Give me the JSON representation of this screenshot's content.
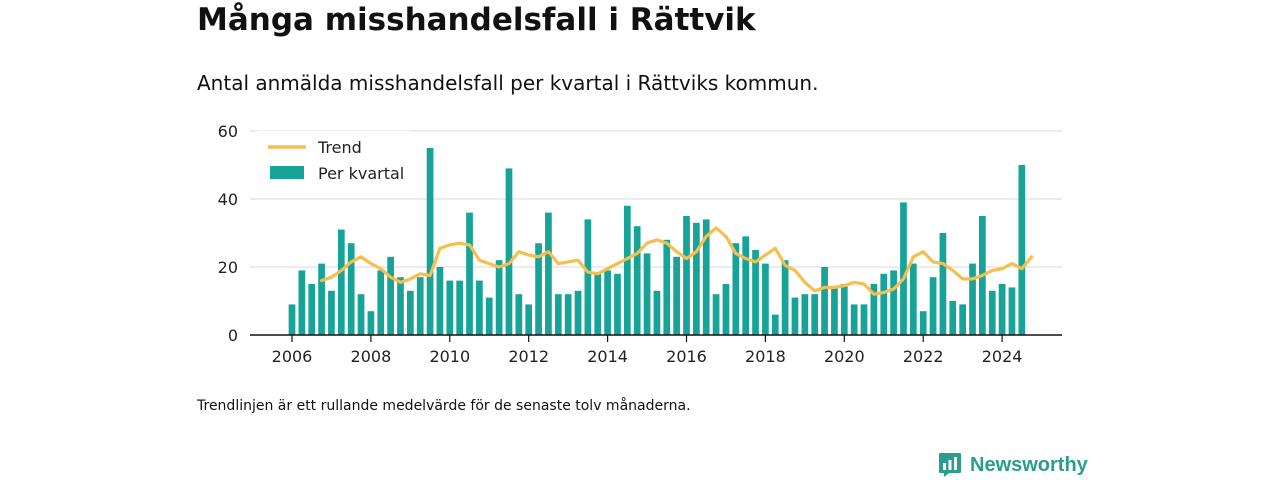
{
  "header": {
    "title": "Många misshandelsfall i Rättvik",
    "subtitle": "Antal anmälda misshandelsfall per kvartal i Rättviks kommun."
  },
  "footnote": "Trendlinjen är ett rullande medelvärde för de senaste tolv månaderna.",
  "brand": {
    "name": "Newsworthy",
    "logo_icon": "bar-chart-speech-bubble-icon",
    "color": "#2a9d8f"
  },
  "chart_data": {
    "type": "bar",
    "title": "",
    "xlabel": "",
    "ylabel": "",
    "ylim": [
      0,
      60
    ],
    "yticks": [
      "0",
      "20",
      "40",
      "60"
    ],
    "xticks": [
      "2006",
      "2008",
      "2010",
      "2012",
      "2014",
      "2016",
      "2018",
      "2020",
      "2022",
      "2024"
    ],
    "grid": true,
    "legend_position": "top-left",
    "colors": {
      "bar": "#17a398",
      "trend": "#f5bf4f"
    },
    "series": [
      {
        "name": "Per kvartal",
        "type": "bar",
        "x_start": "2006-01",
        "interval": "quarter",
        "values": [
          9,
          19,
          15,
          21,
          13,
          31,
          27,
          12,
          7,
          19,
          23,
          17,
          13,
          17,
          55,
          20,
          16,
          16,
          36,
          16,
          11,
          22,
          49,
          12,
          9,
          27,
          36,
          12,
          12,
          13,
          34,
          18,
          19,
          18,
          38,
          32,
          24,
          13,
          28,
          23,
          35,
          33,
          34,
          12,
          15,
          27,
          29,
          25,
          21,
          6,
          22,
          11,
          12,
          12,
          20,
          14,
          15,
          9,
          9,
          15,
          18,
          19,
          39,
          21,
          7,
          17,
          30,
          10,
          9,
          21,
          35,
          13,
          15,
          14,
          50
        ]
      },
      {
        "name": "Trend",
        "type": "line",
        "x_start": "2006-10",
        "interval": "quarter",
        "values": [
          16,
          17,
          19,
          21.5,
          23,
          21,
          19.5,
          17,
          15.5,
          16.5,
          18,
          17.5,
          25.5,
          26.5,
          27,
          26.5,
          22,
          21,
          20,
          21,
          24.5,
          23.5,
          23,
          24.5,
          21,
          21.5,
          22,
          18.5,
          18,
          19.5,
          21,
          22.5,
          24,
          27,
          28,
          27,
          24.5,
          22.5,
          24.5,
          29,
          31.5,
          29,
          24,
          22.5,
          21.5,
          23.5,
          25.5,
          20.5,
          19,
          15.5,
          13,
          14,
          14,
          14.5,
          15.5,
          15,
          12,
          12.5,
          13.5,
          16.5,
          23,
          24.5,
          21.5,
          21,
          19,
          16.5,
          16.5,
          17.5,
          19,
          19.5,
          21,
          19.5,
          23
        ]
      }
    ]
  }
}
